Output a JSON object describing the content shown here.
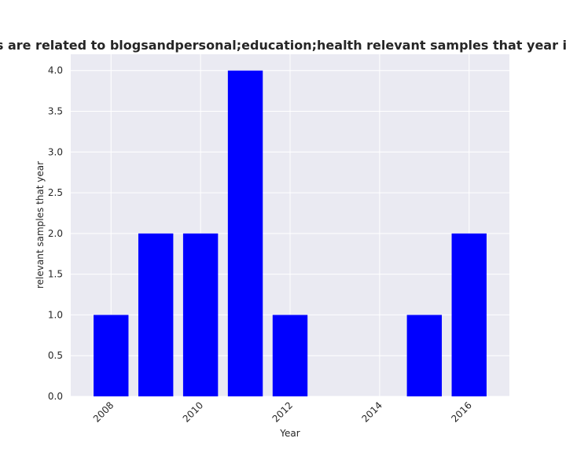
{
  "chart_data": {
    "type": "bar",
    "title": "Number of stories are related to blogsandpersonal;education;health relevant samples that year in privacy policies",
    "xlabel": "Year",
    "ylabel": "relevant samples that year",
    "x": [
      2008,
      2009,
      2010,
      2011,
      2012,
      2015,
      2016
    ],
    "values": [
      1,
      2,
      2,
      4,
      1,
      1,
      2
    ],
    "xlim": [
      2007.1,
      2016.9
    ],
    "ylim": [
      0,
      4.2
    ],
    "xticks": [
      2008,
      2010,
      2012,
      2014,
      2016
    ],
    "yticks": [
      "0.0",
      "0.5",
      "1.0",
      "1.5",
      "2.0",
      "2.5",
      "3.0",
      "3.5",
      "4.0"
    ],
    "grid": true,
    "bar_color": "#0000ff",
    "plot_background": "#eaeaf2"
  }
}
